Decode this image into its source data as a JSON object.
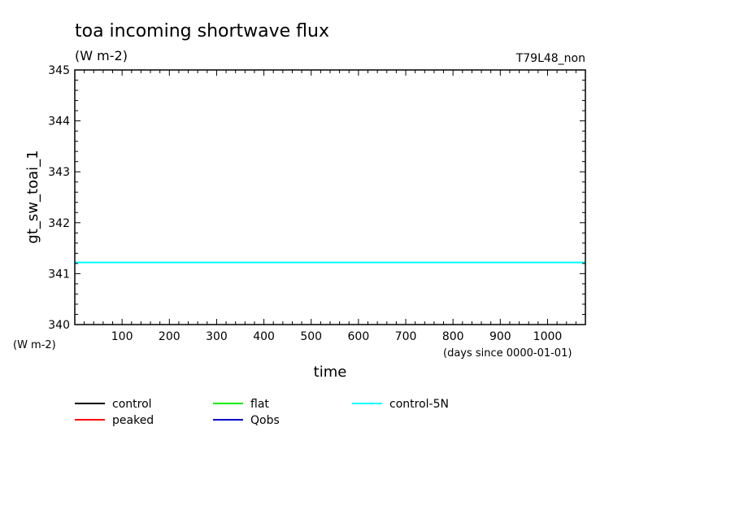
{
  "chart_data": {
    "type": "line",
    "title": "toa incoming shortwave flux",
    "subtitle": "(W m-2)",
    "run_label": "T79L48_non",
    "ylabel": "gt_sw_toai_1",
    "yunit": "(W m-2)",
    "xlabel": "time",
    "xunit": "(days since 0000-01-01)",
    "xlim": [
      0,
      1080
    ],
    "ylim": [
      340,
      345
    ],
    "xticks": [
      100,
      200,
      300,
      400,
      500,
      600,
      700,
      800,
      900,
      1000
    ],
    "yticks": [
      340,
      341,
      342,
      343,
      344,
      345
    ],
    "legend_placement": "bottom",
    "series": [
      {
        "name": "control",
        "color": "#000000",
        "x": [],
        "y": []
      },
      {
        "name": "peaked",
        "color": "#ff0000",
        "x": [],
        "y": []
      },
      {
        "name": "flat",
        "color": "#00ee00",
        "x": [],
        "y": []
      },
      {
        "name": "Qobs",
        "color": "#0000cc",
        "x": [],
        "y": []
      },
      {
        "name": "control-5N",
        "color": "#00ffff",
        "x": [
          0,
          1080
        ],
        "y": [
          341.22,
          341.22
        ]
      }
    ]
  }
}
